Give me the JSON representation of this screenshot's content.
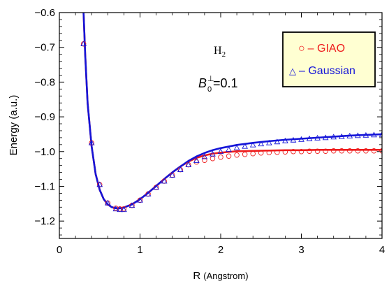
{
  "chart_data": {
    "type": "line",
    "xlabel": "R",
    "xlabel_unit": "(Angstrom)",
    "ylabel": "Energy (a.u.)",
    "xlim": [
      0,
      4
    ],
    "ylim": [
      -1.25,
      -0.6
    ],
    "x_ticks": [
      0,
      1,
      2,
      3,
      4
    ],
    "x_tick_labels": [
      "0",
      "1",
      "2",
      "3",
      "4"
    ],
    "y_ticks": [
      -1.2,
      -1.1,
      -1.0,
      -0.9,
      -0.8,
      -0.7,
      -0.6
    ],
    "y_tick_labels": [
      "-1.2",
      "-1.1",
      "-1.0",
      "-0.9",
      "-0.8",
      "-0.7",
      "-0.6"
    ],
    "annotation_molecule": {
      "base": "H",
      "sub": "2"
    },
    "annotation_field": {
      "symbol": "B",
      "sub": "0",
      "sup": "⊥",
      "rest": "=0.1"
    },
    "legend": {
      "placement": "top-right",
      "entries": [
        {
          "marker": "○",
          "label": "– GIAO",
          "color": "#ee1c1c"
        },
        {
          "marker": "△",
          "label": "– Gaussian",
          "color": "#1515d8"
        }
      ]
    },
    "series": [
      {
        "name": "GIAO",
        "color": "#ee1c1c",
        "marker": "circle",
        "x": [
          0.3,
          0.4,
          0.5,
          0.6,
          0.7,
          0.75,
          0.8,
          0.9,
          1.0,
          1.1,
          1.2,
          1.3,
          1.4,
          1.5,
          1.6,
          1.7,
          1.8,
          1.9,
          2.0,
          2.1,
          2.2,
          2.3,
          2.4,
          2.5,
          2.6,
          2.7,
          2.8,
          2.9,
          3.0,
          3.1,
          3.2,
          3.3,
          3.4,
          3.5,
          3.6,
          3.7,
          3.8,
          3.9,
          4.0
        ],
        "y": [
          -0.69,
          -0.975,
          -1.095,
          -1.148,
          -1.163,
          -1.165,
          -1.165,
          -1.155,
          -1.14,
          -1.122,
          -1.103,
          -1.085,
          -1.068,
          -1.052,
          -1.038,
          -1.03,
          -1.025,
          -1.02,
          -1.016,
          -1.013,
          -1.01,
          -1.008,
          -1.006,
          -1.004,
          -1.003,
          -1.002,
          -1.001,
          -1.0,
          -1.0,
          -0.999,
          -0.999,
          -0.999,
          -0.998,
          -0.998,
          -0.998,
          -0.998,
          -0.998,
          -0.998,
          -0.998
        ]
      },
      {
        "name": "Gaussian",
        "color": "#1515d8",
        "marker": "triangle",
        "x": [
          0.3,
          0.4,
          0.5,
          0.6,
          0.7,
          0.75,
          0.8,
          0.9,
          1.0,
          1.1,
          1.2,
          1.3,
          1.4,
          1.5,
          1.6,
          1.7,
          1.8,
          1.9,
          2.0,
          2.1,
          2.2,
          2.3,
          2.4,
          2.5,
          2.6,
          2.7,
          2.8,
          2.9,
          3.0,
          3.1,
          3.2,
          3.3,
          3.4,
          3.5,
          3.6,
          3.7,
          3.8,
          3.9,
          4.0
        ],
        "y": [
          -0.69,
          -0.975,
          -1.095,
          -1.148,
          -1.165,
          -1.167,
          -1.167,
          -1.155,
          -1.14,
          -1.122,
          -1.103,
          -1.085,
          -1.068,
          -1.052,
          -1.038,
          -1.026,
          -1.015,
          -1.007,
          -1.0,
          -0.994,
          -0.989,
          -0.985,
          -0.981,
          -0.978,
          -0.975,
          -0.972,
          -0.969,
          -0.967,
          -0.965,
          -0.963,
          -0.961,
          -0.96,
          -0.958,
          -0.957,
          -0.955,
          -0.954,
          -0.953,
          -0.952,
          -0.951
        ]
      },
      {
        "name": "GIAO fit",
        "color": "#ee1c1c",
        "marker": "none",
        "x": [
          0.3,
          0.32,
          0.35,
          0.4,
          0.45,
          0.5,
          0.55,
          0.6,
          0.65,
          0.7,
          0.75,
          0.8,
          0.9,
          1.0,
          1.1,
          1.2,
          1.3,
          1.4,
          1.5,
          1.6,
          1.7,
          1.8,
          1.9,
          2.0,
          2.2,
          2.4,
          2.6,
          2.8,
          3.0,
          3.2,
          3.4,
          3.6,
          3.8,
          4.0
        ],
        "y": [
          -0.6,
          -0.72,
          -0.86,
          -0.985,
          -1.065,
          -1.11,
          -1.137,
          -1.152,
          -1.16,
          -1.163,
          -1.163,
          -1.161,
          -1.152,
          -1.137,
          -1.119,
          -1.099,
          -1.079,
          -1.06,
          -1.043,
          -1.029,
          -1.018,
          -1.011,
          -1.006,
          -1.003,
          -0.999,
          -0.998,
          -0.997,
          -0.996,
          -0.996,
          -0.995,
          -0.995,
          -0.995,
          -0.995,
          -0.995
        ]
      },
      {
        "name": "Gaussian fit",
        "color": "#1515d8",
        "marker": "none",
        "x": [
          0.3,
          0.32,
          0.35,
          0.4,
          0.45,
          0.5,
          0.55,
          0.6,
          0.65,
          0.7,
          0.75,
          0.8,
          0.9,
          1.0,
          1.1,
          1.2,
          1.3,
          1.4,
          1.5,
          1.6,
          1.7,
          1.8,
          1.9,
          2.0,
          2.2,
          2.4,
          2.6,
          2.8,
          3.0,
          3.2,
          3.4,
          3.6,
          3.8,
          4.0
        ],
        "y": [
          -0.6,
          -0.72,
          -0.86,
          -0.985,
          -1.065,
          -1.11,
          -1.137,
          -1.152,
          -1.16,
          -1.163,
          -1.163,
          -1.161,
          -1.152,
          -1.137,
          -1.119,
          -1.099,
          -1.079,
          -1.06,
          -1.043,
          -1.027,
          -1.014,
          -1.004,
          -0.996,
          -0.99,
          -0.981,
          -0.975,
          -0.97,
          -0.966,
          -0.963,
          -0.96,
          -0.957,
          -0.954,
          -0.952,
          -0.95
        ]
      }
    ]
  }
}
